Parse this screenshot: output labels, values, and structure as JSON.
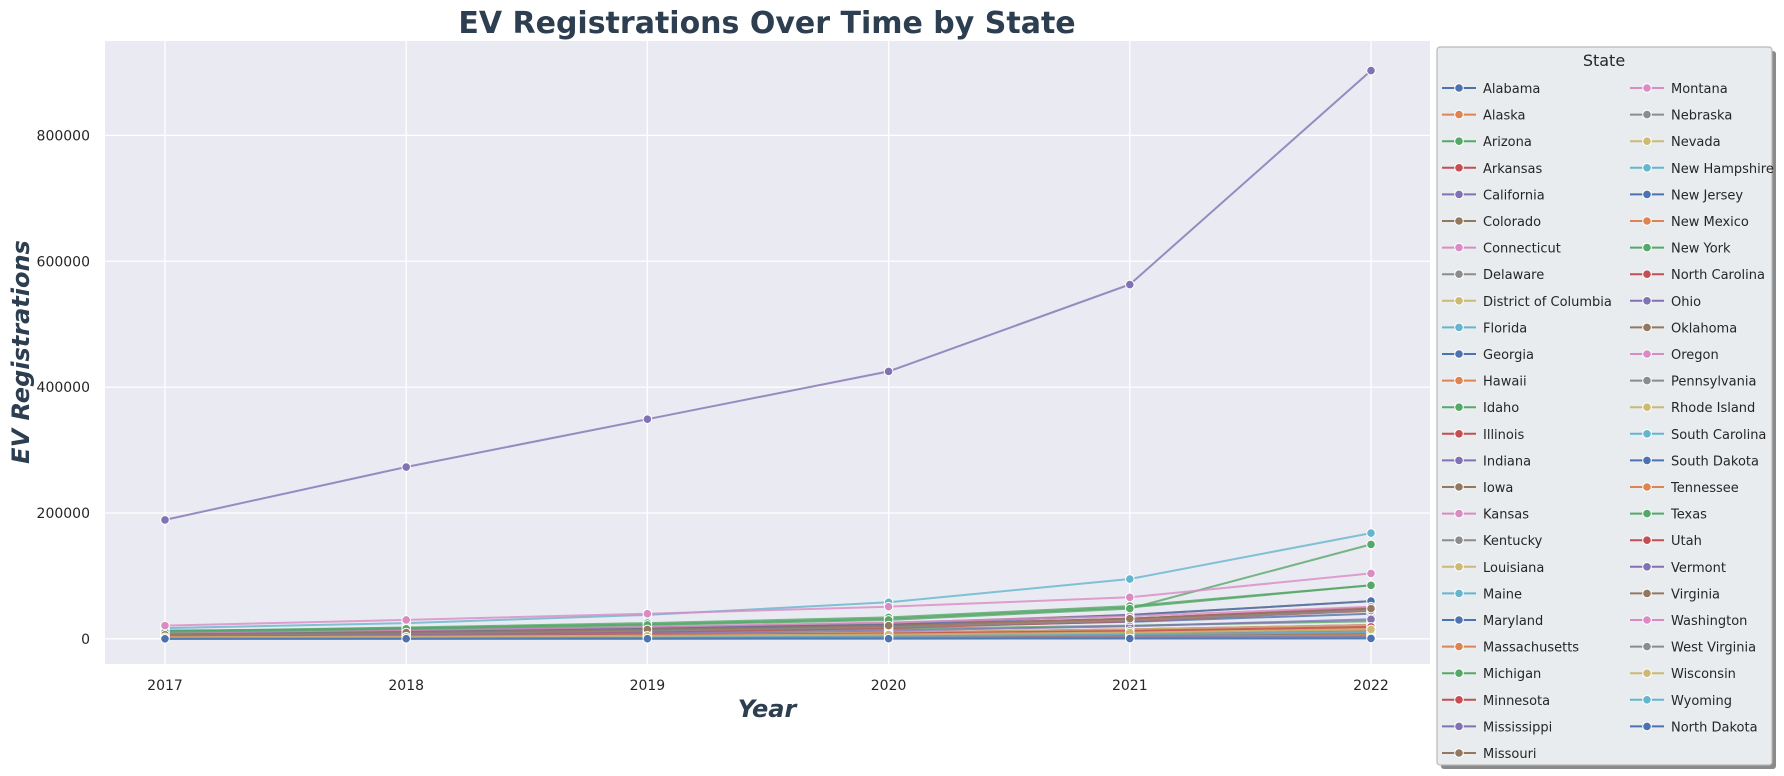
{
  "chart_data": {
    "type": "line",
    "title": "EV Registrations Over Time by State",
    "xlabel": "Year",
    "ylabel": "EV Registrations",
    "x": [
      2017,
      2018,
      2019,
      2020,
      2021,
      2022
    ],
    "yticks": [
      0,
      200000,
      400000,
      600000,
      800000
    ],
    "ylim": [
      -40000,
      950000
    ],
    "grid": true,
    "legend": {
      "title": "State",
      "placement": "outside right",
      "columns": 2
    },
    "palette": [
      "#4c72b0",
      "#dd8452",
      "#55a868",
      "#c44e52",
      "#8172b3",
      "#937860",
      "#da8bc3",
      "#8c8c8c",
      "#ccb974",
      "#64b5cd"
    ],
    "series": [
      {
        "name": "Alabama",
        "values": [
          1500,
          2200,
          3000,
          4200,
          6000,
          9000
        ]
      },
      {
        "name": "Alaska",
        "values": [
          500,
          700,
          900,
          1200,
          1700,
          2500
        ]
      },
      {
        "name": "Arizona",
        "values": [
          12000,
          17000,
          23000,
          32000,
          50000,
          85000
        ]
      },
      {
        "name": "Arkansas",
        "values": [
          1000,
          1400,
          1900,
          2600,
          3800,
          5800
        ]
      },
      {
        "name": "California",
        "values": [
          189000,
          273000,
          349000,
          425000,
          563000,
          903000
        ]
      },
      {
        "name": "Colorado",
        "values": [
          9000,
          13000,
          18000,
          25000,
          38000,
          60000
        ]
      },
      {
        "name": "Connecticut",
        "values": [
          4000,
          5500,
          7500,
          10000,
          15000,
          22000
        ]
      },
      {
        "name": "Delaware",
        "values": [
          800,
          1100,
          1500,
          2100,
          3200,
          5000
        ]
      },
      {
        "name": "District of Columbia",
        "values": [
          1200,
          1600,
          2100,
          2800,
          3800,
          5200
        ]
      },
      {
        "name": "Florida",
        "values": [
          17000,
          25000,
          38000,
          58000,
          95000,
          168000
        ]
      },
      {
        "name": "Georgia",
        "values": [
          13000,
          15000,
          18000,
          22000,
          32000,
          48000
        ]
      },
      {
        "name": "Hawaii",
        "values": [
          5000,
          6500,
          8000,
          9500,
          12000,
          15000
        ]
      },
      {
        "name": "Idaho",
        "values": [
          800,
          1200,
          1800,
          2600,
          4000,
          6000
        ]
      },
      {
        "name": "Illinois",
        "values": [
          9000,
          12000,
          16000,
          22000,
          32000,
          50000
        ]
      },
      {
        "name": "Indiana",
        "values": [
          2000,
          2800,
          3800,
          5200,
          7500,
          11000
        ]
      },
      {
        "name": "Iowa",
        "values": [
          1000,
          1400,
          1900,
          2600,
          3800,
          5500
        ]
      },
      {
        "name": "Kansas",
        "values": [
          1200,
          1600,
          2100,
          2800,
          4000,
          5800
        ]
      },
      {
        "name": "Kentucky",
        "values": [
          1000,
          1400,
          1900,
          2600,
          3800,
          5600
        ]
      },
      {
        "name": "Louisiana",
        "values": [
          800,
          1100,
          1500,
          2000,
          2800,
          4000
        ]
      },
      {
        "name": "Maine",
        "values": [
          600,
          900,
          1300,
          1900,
          2800,
          4300
        ]
      },
      {
        "name": "Maryland",
        "values": [
          7000,
          10000,
          14000,
          19000,
          27000,
          40000
        ]
      },
      {
        "name": "Massachusetts",
        "values": [
          8000,
          11000,
          15000,
          21000,
          30000,
          44000
        ]
      },
      {
        "name": "Michigan",
        "values": [
          6000,
          8500,
          11500,
          15500,
          21000,
          28000
        ]
      },
      {
        "name": "Minnesota",
        "values": [
          4000,
          5500,
          7500,
          10000,
          15000,
          22000
        ]
      },
      {
        "name": "Mississippi",
        "values": [
          300,
          450,
          650,
          900,
          1300,
          2000
        ]
      },
      {
        "name": "Missouri",
        "values": [
          2500,
          3500,
          4800,
          6500,
          9500,
          14000
        ]
      },
      {
        "name": "Montana",
        "values": [
          400,
          600,
          850,
          1200,
          1800,
          2800
        ]
      },
      {
        "name": "Nebraska",
        "values": [
          600,
          850,
          1200,
          1700,
          2500,
          3700
        ]
      },
      {
        "name": "Nevada",
        "values": [
          3500,
          5000,
          7000,
          10000,
          15000,
          22000
        ]
      },
      {
        "name": "New Hampshire",
        "values": [
          900,
          1300,
          1800,
          2500,
          3700,
          5500
        ]
      },
      {
        "name": "New Jersey",
        "values": [
          8000,
          11000,
          16000,
          22000,
          38000,
          60000
        ]
      },
      {
        "name": "New Mexico",
        "values": [
          1200,
          1700,
          2300,
          3100,
          4500,
          6500
        ]
      },
      {
        "name": "New York",
        "values": [
          12000,
          18000,
          25000,
          34000,
          52000,
          85000
        ]
      },
      {
        "name": "North Carolina",
        "values": [
          5000,
          7500,
          11000,
          17000,
          28000,
          45000
        ]
      },
      {
        "name": "Ohio",
        "values": [
          4500,
          6500,
          9000,
          13000,
          20000,
          31000
        ]
      },
      {
        "name": "Oklahoma",
        "values": [
          1500,
          2100,
          2900,
          4000,
          6000,
          9000
        ]
      },
      {
        "name": "Oregon",
        "values": [
          10000,
          14000,
          19000,
          26000,
          36000,
          51000
        ]
      },
      {
        "name": "Pennsylvania",
        "values": [
          6000,
          9000,
          13000,
          19000,
          29000,
          45000
        ]
      },
      {
        "name": "Rhode Island",
        "values": [
          500,
          700,
          1000,
          1400,
          2100,
          3200
        ]
      },
      {
        "name": "South Carolina",
        "values": [
          1500,
          2200,
          3200,
          4700,
          7000,
          10500
        ]
      },
      {
        "name": "South Dakota",
        "values": [
          200,
          300,
          450,
          650,
          950,
          1400
        ]
      },
      {
        "name": "Tennessee",
        "values": [
          3000,
          4200,
          5800,
          8000,
          12000,
          18000
        ]
      },
      {
        "name": "Texas",
        "values": [
          11000,
          16000,
          22000,
          30000,
          48000,
          150000
        ]
      },
      {
        "name": "Utah",
        "values": [
          3000,
          4300,
          6000,
          8500,
          12500,
          19000
        ]
      },
      {
        "name": "Vermont",
        "values": [
          600,
          850,
          1200,
          1700,
          2500,
          3700
        ]
      },
      {
        "name": "Virginia",
        "values": [
          6500,
          10000,
          15000,
          21000,
          32000,
          48000
        ]
      },
      {
        "name": "Washington",
        "values": [
          21000,
          30000,
          40000,
          51000,
          66000,
          104000
        ]
      },
      {
        "name": "West Virginia",
        "values": [
          200,
          300,
          450,
          650,
          950,
          1400
        ]
      },
      {
        "name": "Wisconsin",
        "values": [
          2500,
          3500,
          4900,
          6800,
          10000,
          15000
        ]
      },
      {
        "name": "Wyoming",
        "values": [
          100,
          150,
          220,
          320,
          470,
          700
        ]
      },
      {
        "name": "North Dakota",
        "values": [
          100,
          150,
          220,
          320,
          480,
          700
        ]
      }
    ]
  }
}
